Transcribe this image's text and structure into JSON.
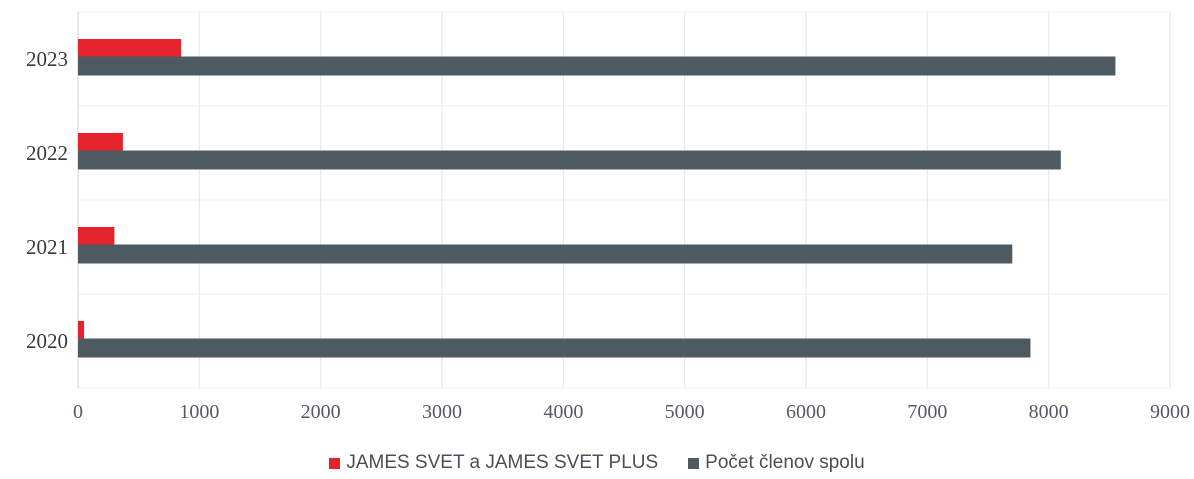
{
  "chart_data": {
    "type": "bar",
    "orientation": "horizontal",
    "categories": [
      "2020",
      "2021",
      "2022",
      "2023"
    ],
    "series": [
      {
        "name": "JAMES SVET a JAMES SVET PLUS",
        "color": "#e4232b",
        "values": [
          50,
          300,
          370,
          850
        ]
      },
      {
        "name": "Počet členov spolu",
        "color": "#4e5a62",
        "values": [
          7850,
          7700,
          8100,
          8550
        ]
      }
    ],
    "xlim": [
      0,
      9000
    ],
    "xticks": [
      "0",
      "1000",
      "2000",
      "3000",
      "4000",
      "5000",
      "6000",
      "7000",
      "8000",
      "9000"
    ],
    "grid": true,
    "legend": "bottom"
  }
}
